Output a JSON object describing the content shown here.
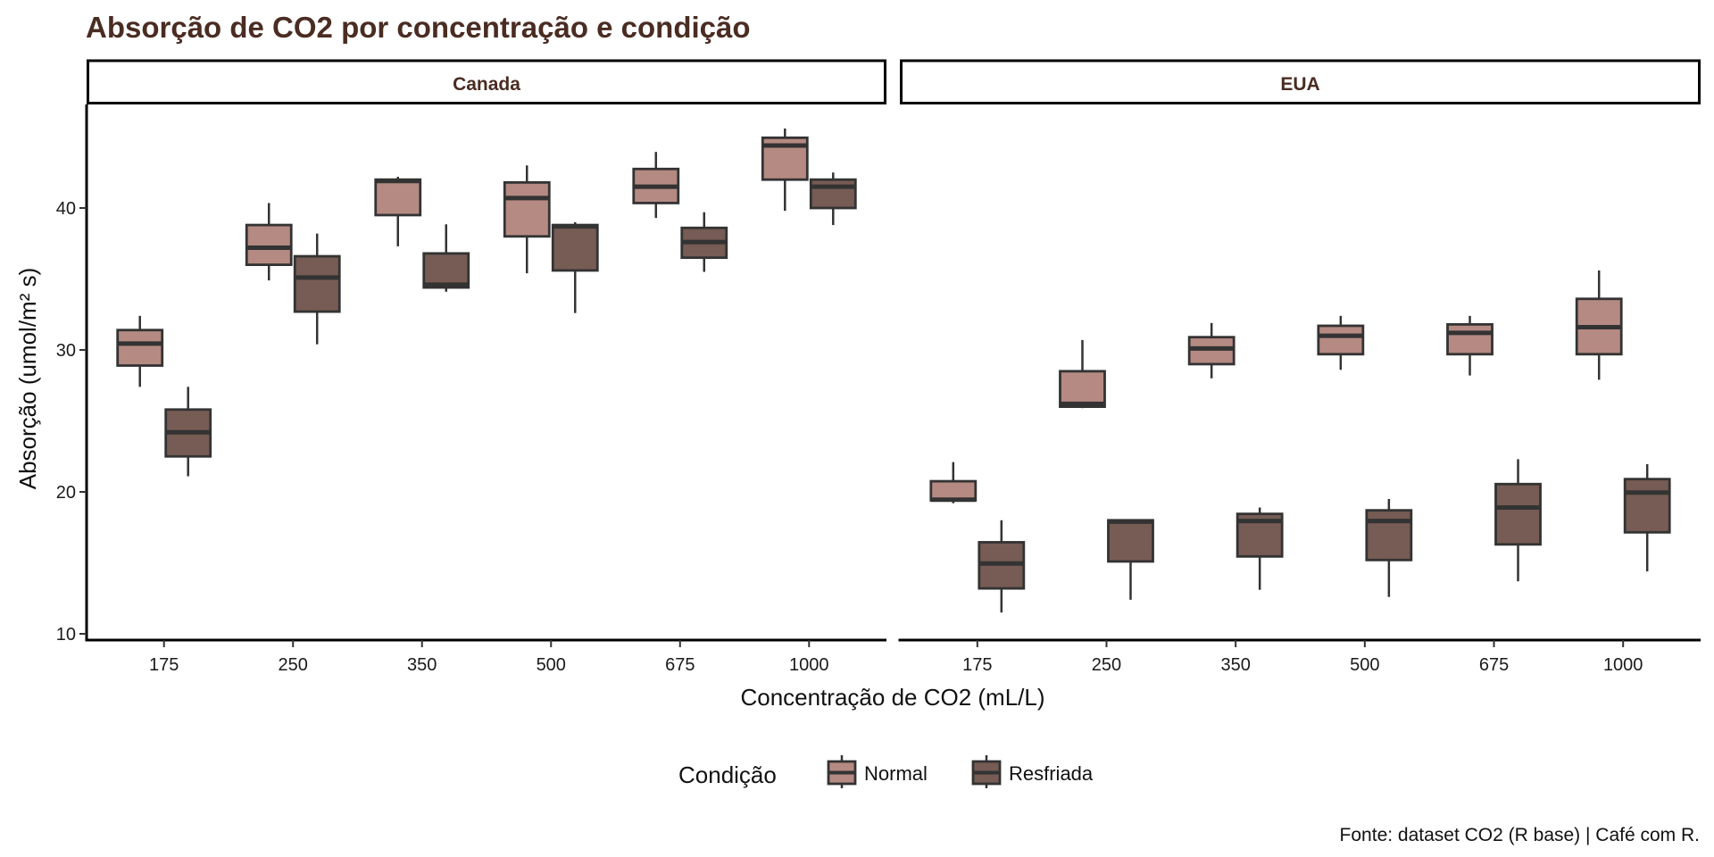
{
  "chart_data": {
    "type": "boxplot",
    "title": "Absorção de CO2 por concentração e condição",
    "xlabel": "Concentração de CO2 (mL/L)",
    "ylabel": "Absorção (umol/m² s)",
    "caption": "Fonte: dataset CO2 (R base) | Café com R.",
    "ylim": [
      10,
      47
    ],
    "yticks": [
      10,
      20,
      30,
      40
    ],
    "ytick_labels": [
      "10",
      "20",
      "30",
      "40"
    ],
    "categories": [
      "175",
      "250",
      "350",
      "500",
      "675",
      "1000"
    ],
    "legend": {
      "title": "Condição",
      "position": "bottom",
      "entries": [
        {
          "name": "Normal",
          "color": "#b58a83"
        },
        {
          "name": "Resfriada",
          "color": "#765c54"
        }
      ]
    },
    "colors": {
      "title": "#4a2c22",
      "outline": "#333333",
      "axis": "#000000"
    },
    "facets": [
      {
        "label": "Canada",
        "series": [
          {
            "name": "Normal",
            "boxes": [
              {
                "category": "175",
                "min": 27.4,
                "q1": 28.9,
                "median": 30.45,
                "q3": 31.4,
                "max": 32.4
              },
              {
                "category": "250",
                "min": 34.9,
                "q1": 36.0,
                "median": 37.2,
                "q3": 38.8,
                "max": 40.35
              },
              {
                "category": "350",
                "min": 37.3,
                "q1": 39.5,
                "median": 41.9,
                "q3": 42.0,
                "max": 42.2
              },
              {
                "category": "500",
                "min": 35.4,
                "q1": 38.0,
                "median": 40.7,
                "q3": 41.8,
                "max": 43.0
              },
              {
                "category": "675",
                "min": 39.3,
                "q1": 40.35,
                "median": 41.5,
                "q3": 42.75,
                "max": 43.95
              },
              {
                "category": "1000",
                "min": 39.8,
                "q1": 42.0,
                "median": 44.4,
                "q3": 44.95,
                "max": 45.6
              }
            ]
          },
          {
            "name": "Resfriada",
            "boxes": [
              {
                "category": "175",
                "min": 21.1,
                "q1": 22.5,
                "median": 24.2,
                "q3": 25.8,
                "max": 27.4
              },
              {
                "category": "250",
                "min": 30.4,
                "q1": 32.7,
                "median": 35.1,
                "q3": 36.6,
                "max": 38.2
              },
              {
                "category": "350",
                "min": 34.1,
                "q1": 34.4,
                "median": 34.6,
                "q3": 36.8,
                "max": 38.85
              },
              {
                "category": "500",
                "min": 32.6,
                "q1": 35.6,
                "median": 38.7,
                "q3": 38.8,
                "max": 39.0
              },
              {
                "category": "675",
                "min": 35.5,
                "q1": 36.5,
                "median": 37.6,
                "q3": 38.6,
                "max": 39.7
              },
              {
                "category": "1000",
                "min": 38.8,
                "q1": 40.0,
                "median": 41.5,
                "q3": 42.0,
                "max": 42.5
              }
            ]
          }
        ]
      },
      {
        "label": "EUA",
        "series": [
          {
            "name": "Normal",
            "boxes": [
              {
                "category": "175",
                "min": 19.2,
                "q1": 19.4,
                "median": 19.45,
                "q3": 20.75,
                "max": 22.1
              },
              {
                "category": "250",
                "min": 25.9,
                "q1": 26.0,
                "median": 26.2,
                "q3": 28.5,
                "max": 30.7
              },
              {
                "category": "350",
                "min": 28.0,
                "q1": 29.0,
                "median": 30.1,
                "q3": 30.9,
                "max": 31.9
              },
              {
                "category": "500",
                "min": 28.6,
                "q1": 29.7,
                "median": 31.0,
                "q3": 31.7,
                "max": 32.4
              },
              {
                "category": "675",
                "min": 28.2,
                "q1": 29.7,
                "median": 31.2,
                "q3": 31.8,
                "max": 32.4
              },
              {
                "category": "1000",
                "min": 27.9,
                "q1": 29.7,
                "median": 31.6,
                "q3": 33.6,
                "max": 35.6
              }
            ]
          },
          {
            "name": "Resfriada",
            "boxes": [
              {
                "category": "175",
                "min": 11.5,
                "q1": 13.2,
                "median": 14.95,
                "q3": 16.45,
                "max": 18.0
              },
              {
                "category": "250",
                "min": 12.4,
                "q1": 15.1,
                "median": 17.9,
                "q3": 18.0,
                "max": 18.0
              },
              {
                "category": "350",
                "min": 13.1,
                "q1": 15.45,
                "median": 17.95,
                "q3": 18.45,
                "max": 18.9
              },
              {
                "category": "500",
                "min": 12.6,
                "q1": 15.2,
                "median": 17.95,
                "q3": 18.7,
                "max": 19.5
              },
              {
                "category": "675",
                "min": 13.7,
                "q1": 16.3,
                "median": 18.9,
                "q3": 20.55,
                "max": 22.3
              },
              {
                "category": "1000",
                "min": 14.4,
                "q1": 17.15,
                "median": 19.95,
                "q3": 20.9,
                "max": 21.95
              }
            ]
          }
        ]
      }
    ]
  }
}
